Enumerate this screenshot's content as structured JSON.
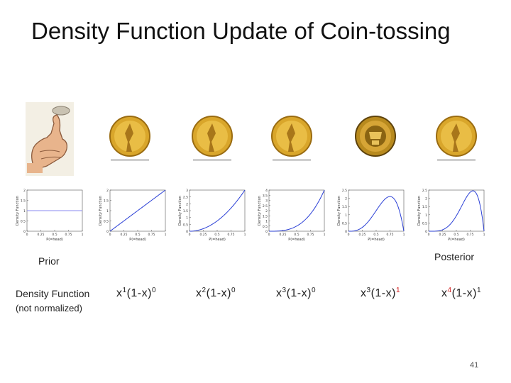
{
  "title": "Density Function Update of Coin-tossing",
  "labels": {
    "prior": "Prior",
    "posterior": "Posterior",
    "density_function": "Density Function",
    "not_normalized": "(not normalized)"
  },
  "formulas": [
    {
      "text": "x",
      "p1": "1",
      "mid": "(1-x)",
      "p2": "0"
    },
    {
      "text": "x",
      "p1": "2",
      "mid": "(1-x)",
      "p2": "0"
    },
    {
      "text": "x",
      "p1": "3",
      "mid": "(1-x)",
      "p2": "0"
    },
    {
      "text": "x",
      "p1": "3",
      "mid": "(1-x)",
      "p2": "1"
    },
    {
      "text": "x",
      "p1": "4",
      "mid": "(1-x)",
      "p2": "1"
    }
  ],
  "coins": [
    "heads",
    "heads",
    "heads",
    "tails",
    "heads"
  ],
  "colors": {
    "superscript_new": "#d21a1a",
    "gold": "#d9a62b",
    "curve": "#2a3fd6",
    "prior_line": "#8a8af0"
  },
  "chart_data": [
    {
      "type": "line",
      "title": "",
      "xlabel": "P(=head)",
      "ylabel": "Density Function",
      "xlim": [
        0,
        1
      ],
      "ylim": [
        0,
        2
      ],
      "xticks": [
        "0",
        "0.25",
        "0.5",
        "0.75",
        "1"
      ],
      "yticks": [
        "0",
        "0.5",
        "1",
        "1.5",
        "2"
      ],
      "function": "1"
    },
    {
      "type": "line",
      "title": "",
      "xlabel": "P(=head)",
      "ylabel": "Density Function",
      "xlim": [
        0,
        1
      ],
      "ylim": [
        0,
        2
      ],
      "xticks": [
        "0",
        "0.25",
        "0.5",
        "0.75",
        "1"
      ],
      "yticks": [
        "0",
        "0.5",
        "1",
        "1.5",
        "2"
      ],
      "function": "2x"
    },
    {
      "type": "line",
      "title": "",
      "xlabel": "P(=head)",
      "ylabel": "Density Function",
      "xlim": [
        0,
        1
      ],
      "ylim": [
        0,
        3
      ],
      "xticks": [
        "0",
        "0.25",
        "0.5",
        "0.75",
        "1"
      ],
      "yticks": [
        "0",
        "0.5",
        "1",
        "1.5",
        "2",
        "2.5",
        "3"
      ],
      "function": "3x^2"
    },
    {
      "type": "line",
      "title": "",
      "xlabel": "P(=head)",
      "ylabel": "Density Function",
      "xlim": [
        0,
        1
      ],
      "ylim": [
        0,
        4
      ],
      "xticks": [
        "0",
        "0.25",
        "0.5",
        "0.75",
        "1"
      ],
      "yticks": [
        "0",
        "0.5",
        "1",
        "1.5",
        "2",
        "2.5",
        "3",
        "3.5",
        "4"
      ],
      "function": "4x^3"
    },
    {
      "type": "line",
      "title": "",
      "xlabel": "P(=head)",
      "ylabel": "Density Function",
      "xlim": [
        0,
        1
      ],
      "ylim": [
        0,
        2.5
      ],
      "xticks": [
        "0",
        "0.25",
        "0.5",
        "0.75",
        "1"
      ],
      "yticks": [
        "0",
        "0.5",
        "1",
        "1.5",
        "2",
        "2.5"
      ],
      "function": "20x^3(1-x)"
    },
    {
      "type": "line",
      "title": "",
      "xlabel": "P(=head)",
      "ylabel": "Density Function",
      "xlim": [
        0,
        1
      ],
      "ylim": [
        0,
        2.5
      ],
      "xticks": [
        "0",
        "0.25",
        "0.5",
        "0.75",
        "1"
      ],
      "yticks": [
        "0",
        "0.5",
        "1",
        "1.5",
        "2",
        "2.5"
      ],
      "function": "30x^4(1-x)"
    }
  ],
  "page_number": "41"
}
